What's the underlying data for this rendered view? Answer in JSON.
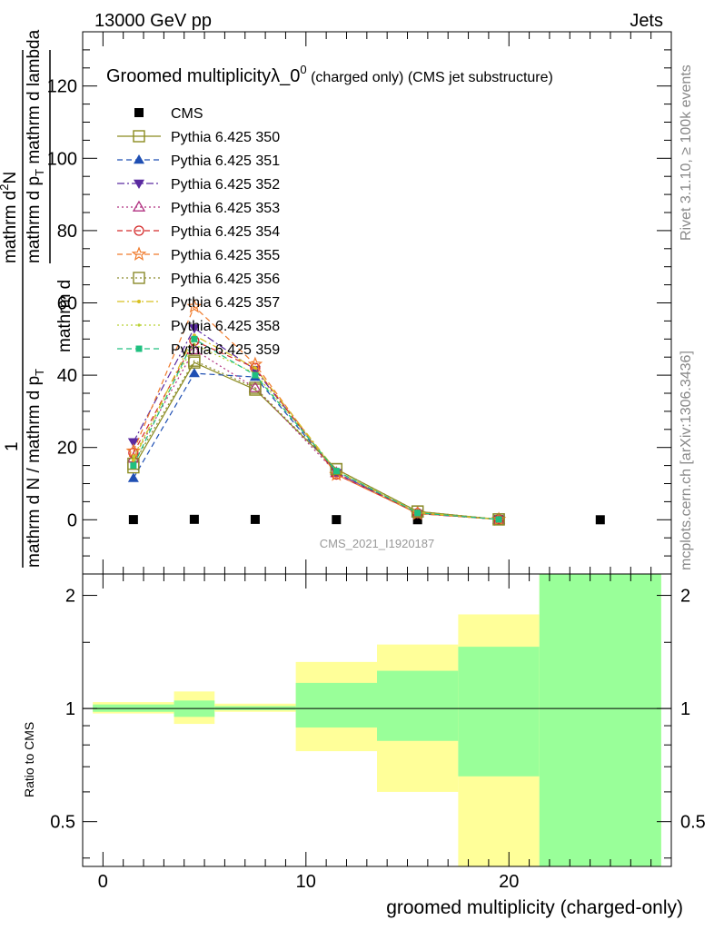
{
  "header": {
    "left": "13000 GeV pp",
    "right": "Jets"
  },
  "side_labels": {
    "top": "Rivet 3.1.10, ≥ 100k events",
    "bottom": "mcplots.cern.ch [arXiv:1306.3436]"
  },
  "plot_title": {
    "main": "Groomed multiplicityλ_0",
    "sup": "0",
    "sub": " (charged only) (CMS jet substructure)"
  },
  "watermark": "CMS_2021_I1920187",
  "ylabel_top": {
    "num": "mathrm d²N",
    "den": "mathrm d p_T mathrm d lambda",
    "prefix_num": "1",
    "prefix_den": "mathrm d N / mathrm d p_T"
  },
  "ylabel_top_display": {
    "frac_num": "1",
    "frac_den": "mathrm d N / mathrm d p",
    "frac_den_sub": "T",
    "mid": "mathrm d",
    "main_num": "mathrm d",
    "main_num_sup": "2",
    "main_num_tail": "N",
    "main_den": "mathrm d p",
    "main_den_sub": "T",
    "main_den_tail": " mathrm d lambda"
  },
  "ylabel_ratio": "Ratio to CMS",
  "xlabel": "groomed multiplicity (charged-only)",
  "chart_data": [
    {
      "type": "line",
      "panel": "main",
      "xlim": [
        -1,
        28
      ],
      "ylim": [
        -15,
        135
      ],
      "xticks": [
        0,
        10,
        20
      ],
      "yticks": [
        0,
        20,
        40,
        60,
        80,
        100,
        120
      ],
      "legend_position": "top-left",
      "series": [
        {
          "name": "CMS",
          "style": "marker",
          "marker": "square-filled",
          "color": "#000000",
          "x": [
            1.5,
            4.5,
            7.5,
            11.5,
            15.5,
            19.5,
            24.5
          ],
          "y": [
            0.05,
            0.12,
            0.1,
            0.04,
            0.01,
            0.003,
            0.0005
          ]
        },
        {
          "name": "Pythia 6.425 350",
          "style": "solid",
          "marker": "square-open",
          "color": "#8b8b1f",
          "x": [
            1.5,
            4.5,
            7.5,
            11.5,
            15.5,
            19.5
          ],
          "y": [
            14.5,
            43.5,
            36,
            14,
            2.3,
            0.1
          ]
        },
        {
          "name": "Pythia 6.425 351",
          "style": "dashed",
          "marker": "triangle-up-filled",
          "color": "#1f4fb3",
          "x": [
            1.5,
            4.5,
            7.5,
            11.5,
            15.5,
            19.5
          ],
          "y": [
            11.5,
            40.5,
            39.5,
            13,
            1.9,
            0.1
          ]
        },
        {
          "name": "Pythia 6.425 352",
          "style": "dashdot",
          "marker": "triangle-down-filled",
          "color": "#5a2aa0",
          "x": [
            1.5,
            4.5,
            7.5,
            11.5,
            15.5,
            19.5
          ],
          "y": [
            21.5,
            53,
            41.5,
            13,
            1.7,
            0.1
          ]
        },
        {
          "name": "Pythia 6.425 353",
          "style": "dotted",
          "marker": "triangle-up-open",
          "color": "#b03080",
          "x": [
            1.5,
            4.5,
            7.5,
            11.5,
            15.5,
            19.5
          ],
          "y": [
            17,
            47,
            36.5,
            13,
            2,
            0.1
          ]
        },
        {
          "name": "Pythia 6.425 354",
          "style": "dashed",
          "marker": "circle-open",
          "color": "#d42a2a",
          "x": [
            1.5,
            4.5,
            7.5,
            11.5,
            15.5,
            19.5
          ],
          "y": [
            18.5,
            49.5,
            42,
            12.5,
            1.8,
            0.1
          ]
        },
        {
          "name": "Pythia 6.425 355",
          "style": "dashed",
          "marker": "star-open",
          "color": "#f07a2a",
          "x": [
            1.5,
            4.5,
            7.5,
            11.5,
            15.5,
            19.5
          ],
          "y": [
            19,
            59,
            43,
            12.5,
            1.7,
            0.1
          ]
        },
        {
          "name": "Pythia 6.425 356",
          "style": "dotted",
          "marker": "square-open",
          "color": "#8a8a2a",
          "x": [
            1.5,
            4.5,
            7.5,
            11.5,
            15.5,
            19.5
          ],
          "y": [
            15.5,
            44,
            36.5,
            14,
            2.3,
            0.1
          ]
        },
        {
          "name": "Pythia 6.425 357",
          "style": "dashdot",
          "marker": "line-dot",
          "color": "#d8c020",
          "x": [
            1.5,
            4.5,
            7.5,
            11.5,
            15.5,
            19.5
          ],
          "y": [
            16.5,
            51,
            42,
            13.5,
            2,
            0.1
          ]
        },
        {
          "name": "Pythia 6.425 358",
          "style": "dotted",
          "marker": "small-dot",
          "color": "#b8d030",
          "x": [
            1.5,
            4.5,
            7.5,
            11.5,
            15.5,
            19.5
          ],
          "y": [
            17.5,
            48.5,
            40.5,
            13.5,
            2,
            0.1
          ]
        },
        {
          "name": "Pythia 6.425 359",
          "style": "dashed",
          "marker": "square-filled-small",
          "color": "#20c080",
          "x": [
            1.5,
            4.5,
            7.5,
            11.5,
            15.5,
            19.5
          ],
          "y": [
            15,
            50,
            40,
            13.5,
            1.9,
            0.1
          ]
        }
      ]
    },
    {
      "type": "area",
      "panel": "ratio",
      "xlim": [
        -1,
        28
      ],
      "ylim": [
        0.38,
        2.28
      ],
      "yticks": [
        0.5,
        1,
        2
      ],
      "reference_line": 1,
      "bins": [
        {
          "x_low": -0.5,
          "x_high": 3.5,
          "yellow": [
            0.97,
            1.04
          ],
          "green": [
            0.98,
            1.025
          ]
        },
        {
          "x_low": 3.5,
          "x_high": 5.5,
          "yellow": [
            0.91,
            1.11
          ],
          "green": [
            0.95,
            1.05
          ]
        },
        {
          "x_low": 5.5,
          "x_high": 9.5,
          "yellow": [
            0.98,
            1.03
          ],
          "green": [
            0.99,
            1.015
          ]
        },
        {
          "x_low": 9.5,
          "x_high": 13.5,
          "yellow": [
            0.77,
            1.33
          ],
          "green": [
            0.89,
            1.17
          ]
        },
        {
          "x_low": 13.5,
          "x_high": 17.5,
          "yellow": [
            0.6,
            1.48
          ],
          "green": [
            0.82,
            1.26
          ]
        },
        {
          "x_low": 17.5,
          "x_high": 21.5,
          "yellow": [
            0.38,
            1.78
          ],
          "green": [
            0.66,
            1.46
          ]
        },
        {
          "x_low": 21.5,
          "x_high": 27.5,
          "yellow": [
            0.38,
            2.28
          ],
          "green": [
            0.38,
            2.28
          ]
        }
      ],
      "colors": {
        "yellow": "#ffff99",
        "green": "#99ff99"
      }
    }
  ]
}
